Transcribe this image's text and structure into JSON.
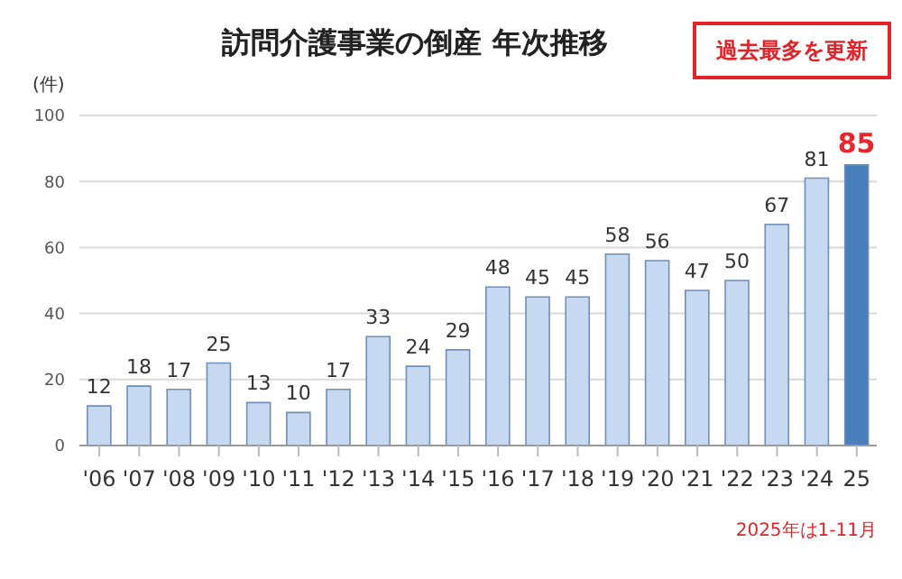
{
  "chart_data": {
    "type": "bar",
    "title": "訪問介護事業の倒産 年次推移",
    "ylabel": "(件)",
    "categories": [
      "'06",
      "'07",
      "'08",
      "'09",
      "'10",
      "'11",
      "'12",
      "'13",
      "'14",
      "'15",
      "'16",
      "'17",
      "'18",
      "'19",
      "'20",
      "'21",
      "'22",
      "'23",
      "'24",
      "25"
    ],
    "series": [
      {
        "color": "#c6d9f1",
        "colors": [
          "#c6d9f1",
          "#c6d9f1",
          "#c6d9f1",
          "#c6d9f1",
          "#c6d9f1",
          "#c6d9f1",
          "#c6d9f1",
          "#c6d9f1",
          "#c6d9f1",
          "#c6d9f1",
          "#c6d9f1",
          "#c6d9f1",
          "#c6d9f1",
          "#c6d9f1",
          "#c6d9f1",
          "#c6d9f1",
          "#c6d9f1",
          "#c6d9f1",
          "#c6d9f1",
          "#4a7ebb"
        ],
        "values": [
          12,
          18,
          17,
          25,
          13,
          10,
          17,
          33,
          24,
          29,
          48,
          45,
          45,
          58,
          56,
          47,
          50,
          67,
          81,
          85
        ]
      }
    ],
    "ylim": [
      0,
      100
    ],
    "yticks": [
      0,
      20,
      40,
      60,
      80,
      100
    ],
    "grid": "y",
    "data_labels": true,
    "annotations": [
      "過去最多を更新",
      "2025年は1-11月"
    ]
  }
}
